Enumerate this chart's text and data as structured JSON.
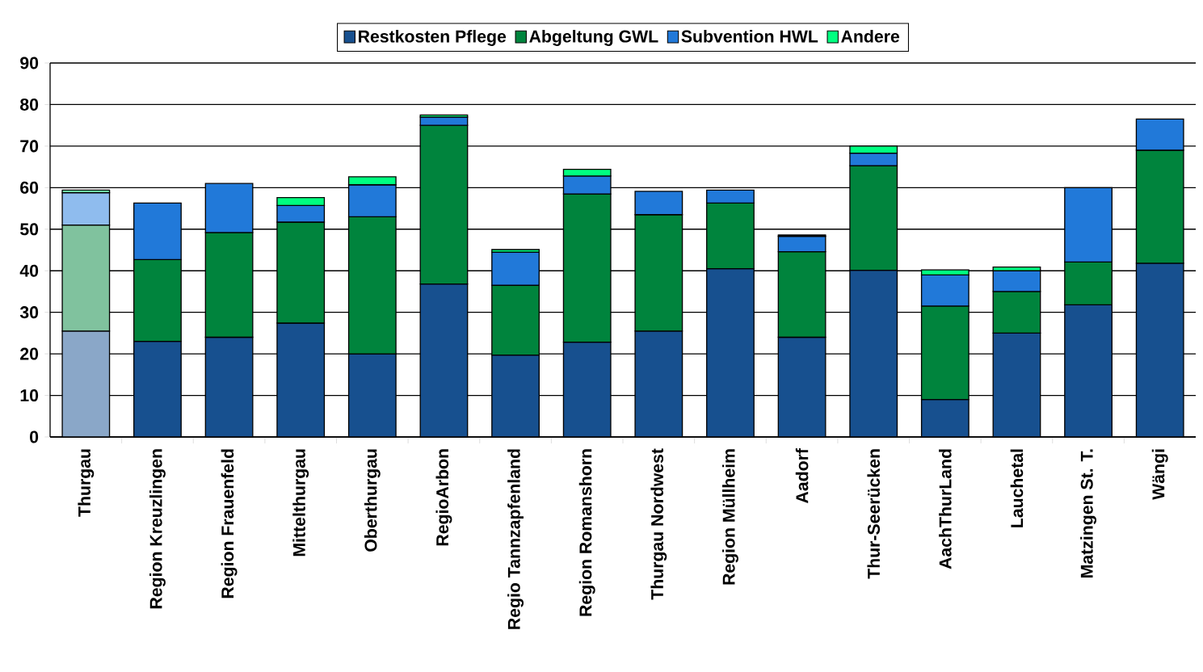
{
  "chart_data": {
    "type": "bar",
    "stacked": true,
    "categories": [
      "Thurgau",
      "Region Kreuzlingen",
      "Region Frauenfeld",
      "Mittelthurgau",
      "Oberthurgau",
      "RegioArbon",
      "Regio Tannzapfenland",
      "Region Romanshorn",
      "Thurgau Nordwest",
      "Region Müllheim",
      "Aadorf",
      "Thur-Seerücken",
      "AachThurLand",
      "Lauchetal",
      "Matzingen St. T.",
      "Wängi"
    ],
    "series": [
      {
        "name": "Restkosten Pflege",
        "color": "#17508f",
        "colors": [
          "#8aa7c8",
          "#17508f",
          "#17508f",
          "#17508f",
          "#17508f",
          "#17508f",
          "#17508f",
          "#17508f",
          "#17508f",
          "#17508f",
          "#17508f",
          "#17508f",
          "#17508f",
          "#17508f",
          "#17508f",
          "#17508f"
        ],
        "values": [
          25.5,
          23,
          24,
          27.4,
          20,
          36.8,
          19.7,
          22.8,
          25.5,
          40.5,
          24,
          40.1,
          9,
          25,
          31.8,
          41.8
        ]
      },
      {
        "name": "Abgeltung GWL",
        "color": "#00843d",
        "colors": [
          "#80c29e",
          "#00843d",
          "#00843d",
          "#00843d",
          "#00843d",
          "#00843d",
          "#00843d",
          "#00843d",
          "#00843d",
          "#00843d",
          "#00843d",
          "#00843d",
          "#00843d",
          "#00843d",
          "#00843d",
          "#00843d"
        ],
        "values": [
          25.5,
          19.7,
          25.2,
          24.3,
          33,
          38.2,
          16.8,
          35.7,
          28,
          15.8,
          20.6,
          25.2,
          22.5,
          10,
          10.3,
          27.2
        ]
      },
      {
        "name": "Subvention HWL",
        "color": "#2179d9",
        "colors": [
          "#8fbcee",
          "#2179d9",
          "#2179d9",
          "#2179d9",
          "#2179d9",
          "#2179d9",
          "#2179d9",
          "#2179d9",
          "#2179d9",
          "#2179d9",
          "#2179d9",
          "#2179d9",
          "#2179d9",
          "#2179d9",
          "#2179d9",
          "#2179d9"
        ],
        "values": [
          7.8,
          13.6,
          11.8,
          4.0,
          7.7,
          2.0,
          8.0,
          4.3,
          5.6,
          3.1,
          3.7,
          3.0,
          7.5,
          5.0,
          17.9,
          7.5
        ]
      },
      {
        "name": "Andere",
        "color": "#00ff80",
        "colors": [
          "#80ffbf",
          "#00ff80",
          "#00ff80",
          "#00ff80",
          "#00ff80",
          "#00ff80",
          "#00ff80",
          "#00ff80",
          "#00ff80",
          "#00ff80",
          "#00ff80",
          "#00ff80",
          "#00ff80",
          "#00ff80",
          "#00ff80",
          "#00ff80"
        ],
        "values": [
          0.6,
          null,
          null,
          1.9,
          1.9,
          0.5,
          0.6,
          1.6,
          null,
          null,
          0.3,
          1.7,
          1.2,
          0.9,
          null,
          null
        ]
      }
    ],
    "ylim": [
      0,
      90
    ],
    "yticks": [
      0,
      10,
      20,
      30,
      40,
      50,
      60,
      70,
      80,
      90
    ],
    "grid": "y",
    "legend": "top"
  }
}
